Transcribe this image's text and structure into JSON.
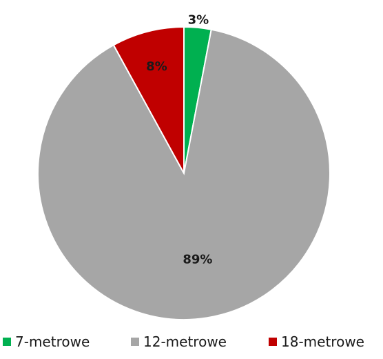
{
  "chart_data": {
    "type": "pie",
    "title": "",
    "categories": [
      "7-metrowe",
      "12-metrowe",
      "18-metrowe"
    ],
    "values": [
      3,
      89,
      8
    ],
    "labels": [
      "3%",
      "89%",
      "8%"
    ],
    "colors": [
      "#00b050",
      "#a6a6a6",
      "#c00000"
    ],
    "legend": {
      "position": "bottom",
      "items": [
        "7-metrowe",
        "12-metrowe",
        "18-metrowe"
      ]
    }
  }
}
